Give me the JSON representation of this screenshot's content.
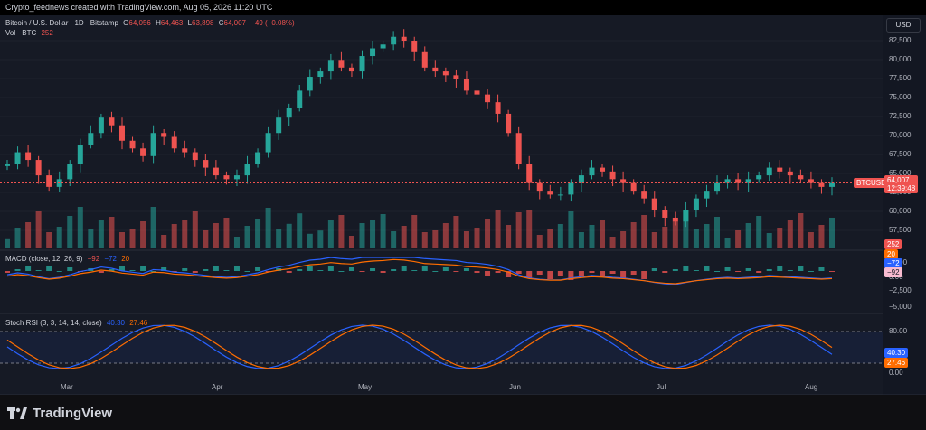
{
  "header": {
    "caption": "Crypto_feednews created with TradingView.com, Aug 05, 2026 11:20 UTC"
  },
  "main_legend": {
    "symbol": "Bitcoin / U.S. Dollar · 1D · Bitstamp",
    "open_label": "O",
    "open": "64,056",
    "high_label": "H",
    "high": "64,463",
    "low_label": "L",
    "low": "63,898",
    "close_label": "C",
    "close": "64,007",
    "change": "−49 (−0.08%)"
  },
  "volume_legend": {
    "label": "Vol · BTC",
    "value": "252"
  },
  "currency_button": "USD",
  "price_axis": {
    "ticks": [
      "82,500",
      "80,000",
      "77,500",
      "75,000",
      "72,500",
      "70,000",
      "67,500",
      "65,000",
      "62,500",
      "60,000",
      "57,500"
    ],
    "symbol_tag": "BTCUSD",
    "price_tag": "64,007",
    "countdown": "12:39:48",
    "volume_tag": "252"
  },
  "macd": {
    "label": "MACD (close, 12, 26, 9)",
    "v1": "−92",
    "v2": "−72",
    "v3": "20",
    "axis_ticks": [
      "2,500",
      "0.00",
      "−2,500",
      "−5,000"
    ],
    "tags": {
      "hist": "20",
      "macd": "−72",
      "signal": "−92"
    }
  },
  "stoch_rsi": {
    "label": "Stoch RSI (3, 3, 14, 14, close)",
    "k": "40.30",
    "d": "27.46",
    "axis_ticks": [
      "80.00",
      "0.00"
    ],
    "tags": {
      "k": "40.30",
      "d": "27.46"
    }
  },
  "time_axis": [
    "Mar",
    "Apr",
    "May",
    "Jun",
    "Jul",
    "Aug"
  ],
  "brand": {
    "name": "TradingView"
  },
  "colors": {
    "up": "#26a69a",
    "down": "#ef5350",
    "macd": "#2962ff",
    "signal": "#ff6d00",
    "background": "#161a25"
  },
  "chart_data": {
    "type": "candlestick",
    "symbol": "BTCUSD",
    "ylim": [
      55000,
      85000
    ],
    "x": [
      "Mar",
      "Apr",
      "May",
      "Jun",
      "Jul",
      "Aug"
    ],
    "closes": [
      66500,
      68000,
      67000,
      65000,
      63500,
      64500,
      66500,
      69000,
      70500,
      72500,
      71500,
      69500,
      68500,
      67500,
      70500,
      70000,
      68500,
      68000,
      67000,
      66000,
      65000,
      64500,
      65000,
      66500,
      68000,
      70500,
      72500,
      73800,
      76000,
      77800,
      78500,
      80000,
      79000,
      78500,
      80500,
      81500,
      82000,
      83000,
      82500,
      81000,
      79000,
      78500,
      78000,
      77500,
      76000,
      75500,
      74500,
      73000,
      70500,
      66500,
      64000,
      63000,
      62500,
      62500,
      64000,
      65000,
      66000,
      65500,
      64500,
      64000,
      63000,
      62000,
      60500,
      59500,
      59000,
      60500,
      62000,
      63000,
      64000,
      64500,
      64000,
      64500,
      65000,
      66000,
      65500,
      65000,
      64500,
      64000,
      63500,
      64007
    ],
    "volume_last": 252,
    "indicators": {
      "macd": {
        "params": "close, 12, 26, 9",
        "values": [
          -92,
          -72,
          20
        ]
      },
      "stoch_rsi": {
        "params": "3, 3, 14, 14, close",
        "k": 40.3,
        "d": 27.46,
        "levels": [
          80,
          20
        ]
      }
    }
  }
}
